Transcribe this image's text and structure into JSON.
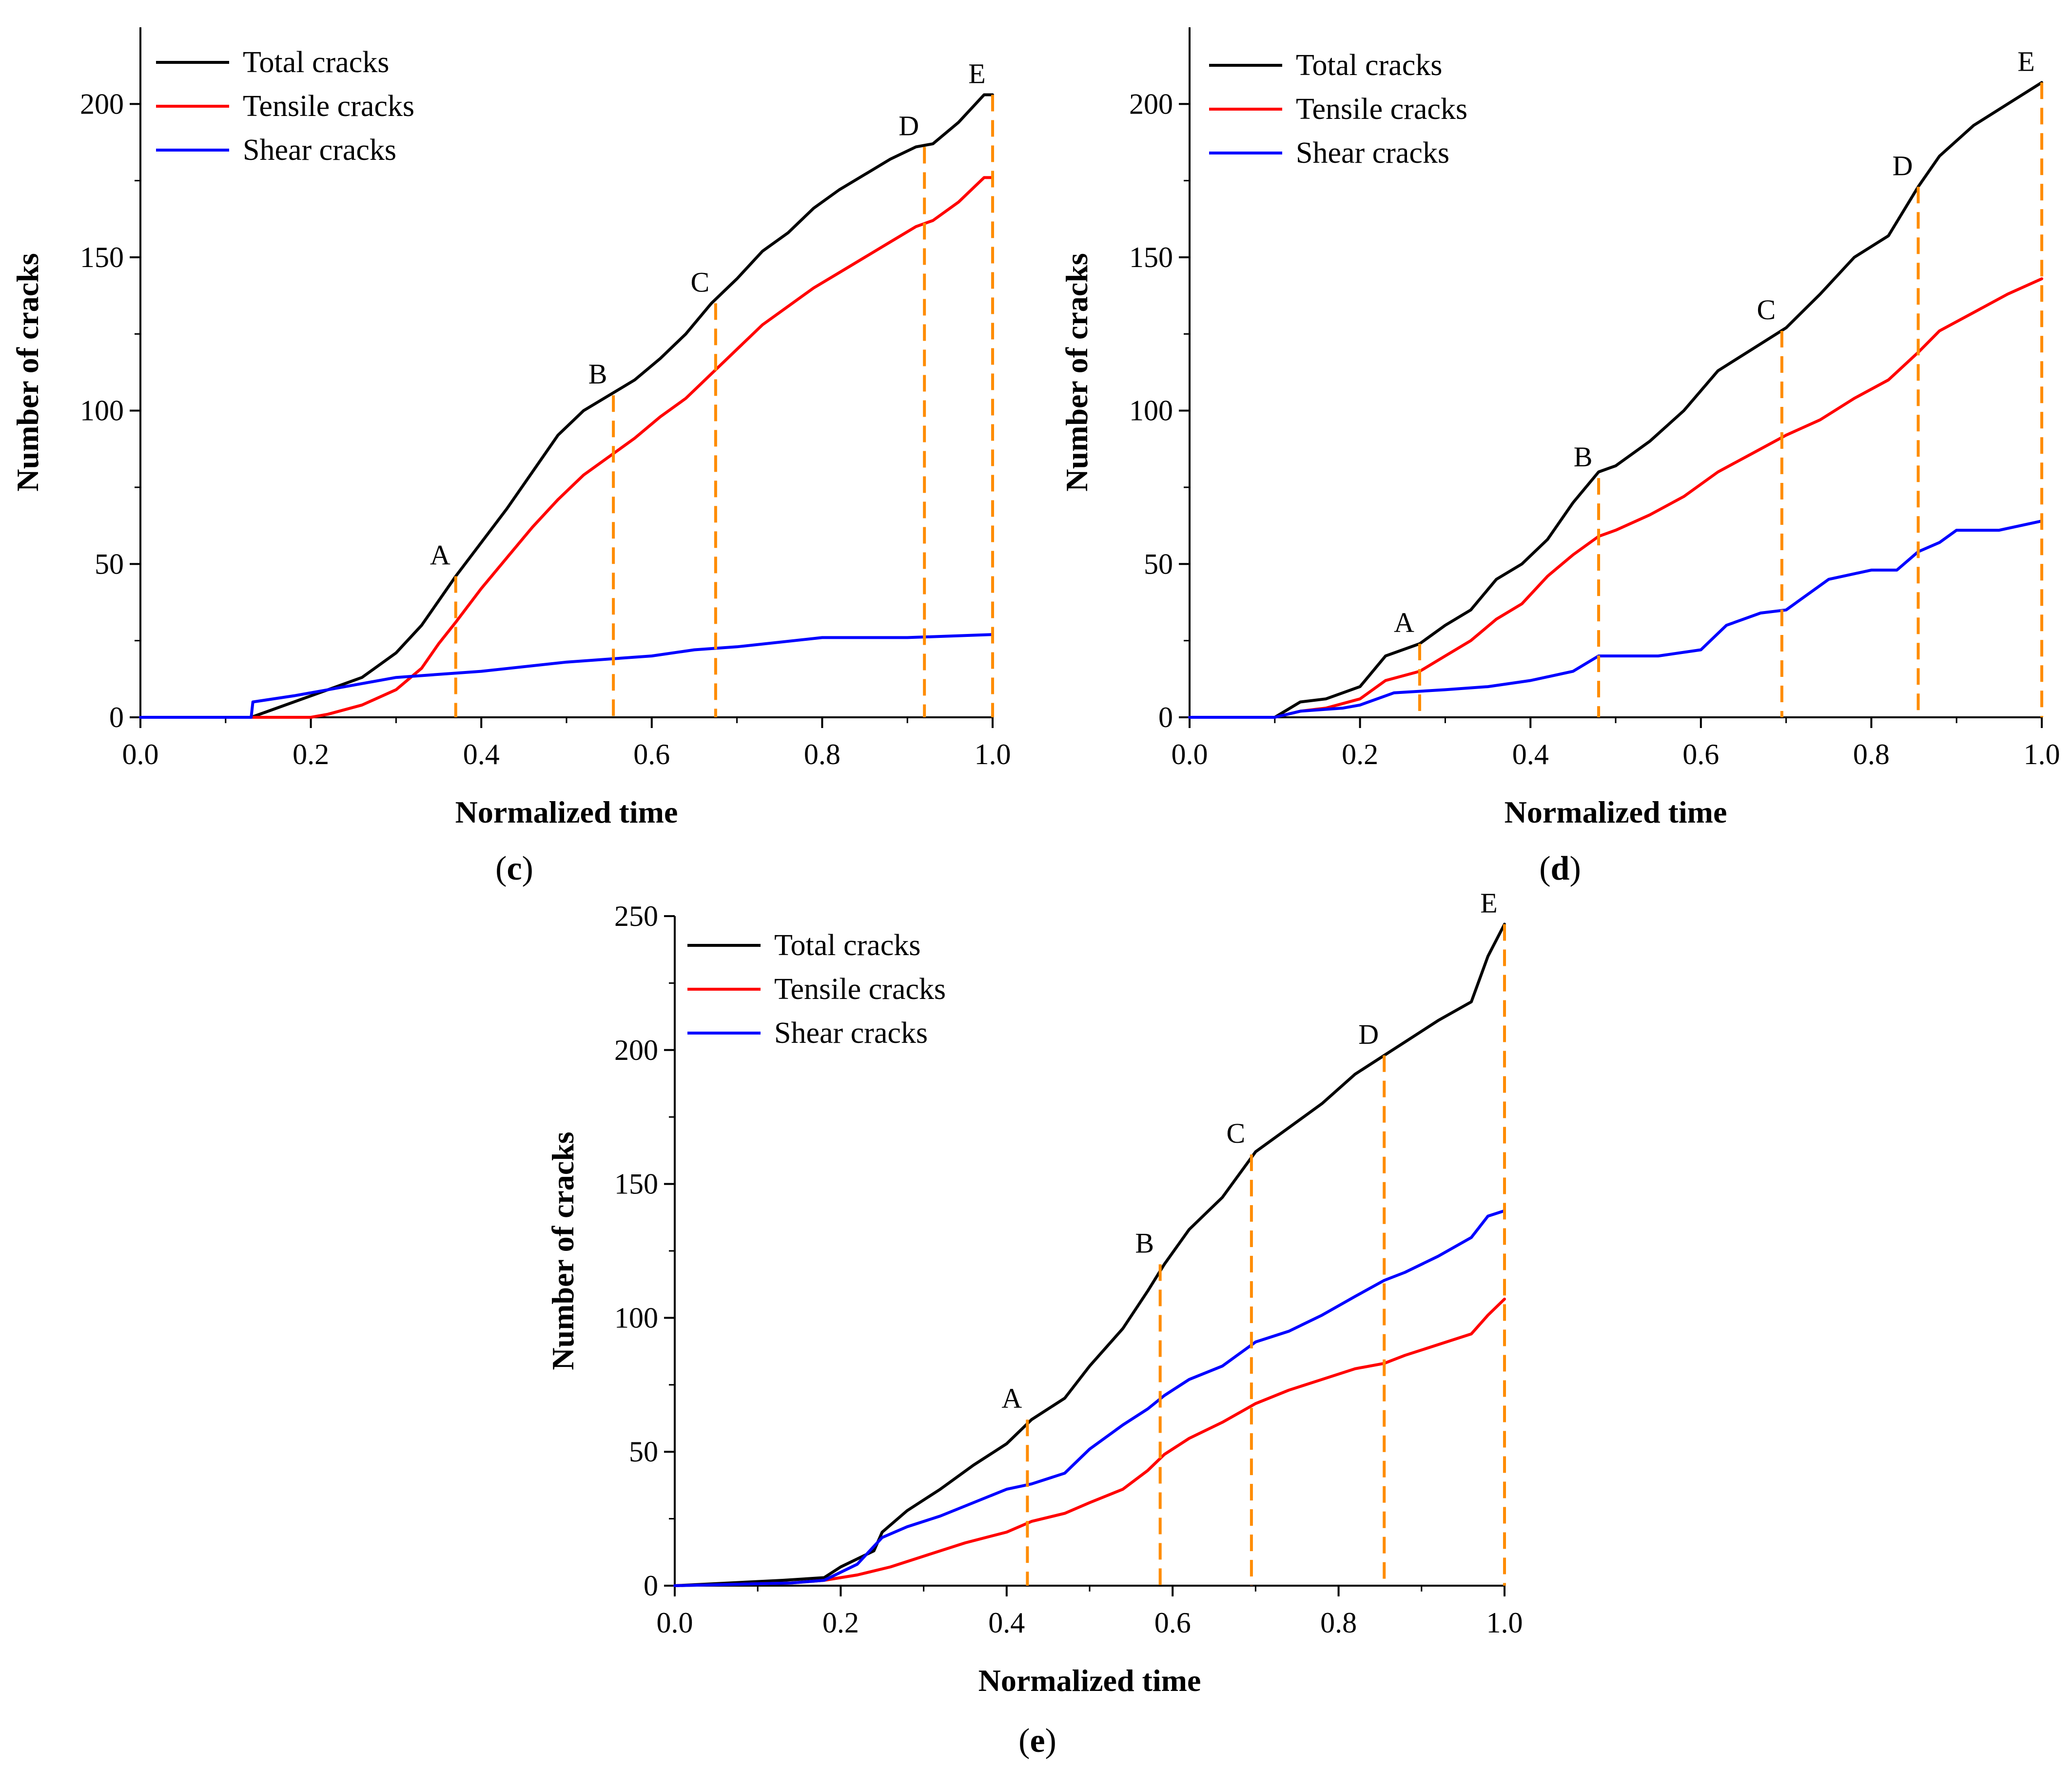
{
  "figure": {
    "colors": {
      "total": "#000000",
      "tensile": "#ff0000",
      "shear": "#0000ff",
      "marker": "#ff8c00",
      "axis": "#000000"
    }
  },
  "chart_data": [
    {
      "id": "c",
      "type": "line",
      "panel_label": "(c)",
      "panel_letter": "c",
      "xlabel": "Normalized time",
      "ylabel": "Number of cracks",
      "xlim": [
        0,
        1.0
      ],
      "ylim": [
        0,
        225
      ],
      "xticks": [
        0.0,
        0.2,
        0.4,
        0.6,
        0.8,
        1.0
      ],
      "xtick_labels": [
        "0.0",
        "0.2",
        "0.4",
        "0.6",
        "0.8",
        "1.0"
      ],
      "yticks": [
        0,
        50,
        100,
        150,
        200
      ],
      "ytick_labels": [
        "0",
        "50",
        "100",
        "150",
        "200"
      ],
      "legend": [
        "Total cracks",
        "Tensile cracks",
        "Shear cracks"
      ],
      "series": [
        {
          "name": "Total cracks",
          "color": "#000000",
          "x": [
            0,
            0.13,
            0.22,
            0.26,
            0.3,
            0.33,
            0.35,
            0.37,
            0.4,
            0.43,
            0.46,
            0.49,
            0.52,
            0.55,
            0.58,
            0.61,
            0.64,
            0.67,
            0.7,
            0.73,
            0.76,
            0.79,
            0.82,
            0.85,
            0.88,
            0.91,
            0.93,
            0.96,
            0.99,
            1.0
          ],
          "y": [
            0,
            0,
            9,
            13,
            21,
            30,
            38,
            46,
            57,
            68,
            80,
            92,
            100,
            105,
            110,
            117,
            125,
            135,
            143,
            152,
            158,
            166,
            172,
            177,
            182,
            186,
            187,
            194,
            203,
            203
          ]
        },
        {
          "name": "Tensile cracks",
          "color": "#ff0000",
          "x": [
            0,
            0.2,
            0.22,
            0.26,
            0.3,
            0.33,
            0.35,
            0.37,
            0.4,
            0.43,
            0.46,
            0.49,
            0.52,
            0.55,
            0.58,
            0.61,
            0.64,
            0.67,
            0.7,
            0.73,
            0.76,
            0.79,
            0.82,
            0.85,
            0.88,
            0.91,
            0.93,
            0.96,
            0.99,
            1.0
          ],
          "y": [
            0,
            0,
            1,
            4,
            9,
            16,
            24,
            31,
            42,
            52,
            62,
            71,
            79,
            85,
            91,
            98,
            104,
            112,
            120,
            128,
            134,
            140,
            145,
            150,
            155,
            160,
            162,
            168,
            176,
            176
          ]
        },
        {
          "name": "Shear cracks",
          "color": "#0000ff",
          "x": [
            0,
            0.13,
            0.132,
            0.18,
            0.22,
            0.3,
            0.4,
            0.5,
            0.6,
            0.65,
            0.7,
            0.8,
            0.9,
            1.0
          ],
          "y": [
            0,
            0,
            5,
            7,
            9,
            13,
            15,
            18,
            20,
            22,
            23,
            26,
            26,
            27
          ]
        }
      ],
      "markers": [
        {
          "label": "A",
          "x": 0.37,
          "y": 46
        },
        {
          "label": "B",
          "x": 0.555,
          "y": 105
        },
        {
          "label": "C",
          "x": 0.675,
          "y": 135
        },
        {
          "label": "D",
          "x": 0.92,
          "y": 186
        },
        {
          "label": "E",
          "x": 1.0,
          "y": 203
        }
      ]
    },
    {
      "id": "d",
      "type": "line",
      "panel_label": "(d)",
      "panel_letter": "d",
      "xlabel": "Normalized time",
      "ylabel": "Number of cracks",
      "xlim": [
        0,
        1.0
      ],
      "ylim": [
        0,
        225
      ],
      "xticks": [
        0.0,
        0.2,
        0.4,
        0.6,
        0.8,
        1.0
      ],
      "xtick_labels": [
        "0.0",
        "0.2",
        "0.4",
        "0.6",
        "0.8",
        "1.0"
      ],
      "yticks": [
        0,
        50,
        100,
        150,
        200
      ],
      "ytick_labels": [
        "0",
        "50",
        "100",
        "150",
        "200"
      ],
      "legend": [
        "Total cracks",
        "Tensile cracks",
        "Shear cracks"
      ],
      "series": [
        {
          "name": "Total cracks",
          "color": "#000000",
          "x": [
            0,
            0.1,
            0.13,
            0.16,
            0.2,
            0.23,
            0.27,
            0.3,
            0.33,
            0.36,
            0.39,
            0.42,
            0.45,
            0.48,
            0.5,
            0.54,
            0.58,
            0.62,
            0.66,
            0.7,
            0.74,
            0.78,
            0.82,
            0.855,
            0.88,
            0.92,
            0.96,
            1.0
          ],
          "y": [
            0,
            0,
            5,
            6,
            10,
            20,
            24,
            30,
            35,
            45,
            50,
            58,
            70,
            80,
            82,
            90,
            100,
            113,
            120,
            127,
            138,
            150,
            157,
            173,
            183,
            193,
            200,
            207
          ]
        },
        {
          "name": "Tensile cracks",
          "color": "#ff0000",
          "x": [
            0,
            0.1,
            0.13,
            0.16,
            0.2,
            0.23,
            0.27,
            0.3,
            0.33,
            0.36,
            0.39,
            0.42,
            0.45,
            0.48,
            0.5,
            0.54,
            0.58,
            0.62,
            0.66,
            0.7,
            0.74,
            0.78,
            0.82,
            0.855,
            0.88,
            0.92,
            0.96,
            1.0
          ],
          "y": [
            0,
            0,
            2,
            3,
            6,
            12,
            15,
            20,
            25,
            32,
            37,
            46,
            53,
            59,
            61,
            66,
            72,
            80,
            86,
            92,
            97,
            104,
            110,
            119,
            126,
            132,
            138,
            143
          ]
        },
        {
          "name": "Shear cracks",
          "color": "#0000ff",
          "x": [
            0,
            0.1,
            0.13,
            0.18,
            0.2,
            0.24,
            0.3,
            0.35,
            0.4,
            0.45,
            0.48,
            0.55,
            0.6,
            0.63,
            0.67,
            0.7,
            0.75,
            0.8,
            0.83,
            0.855,
            0.88,
            0.9,
            0.95,
            1.0
          ],
          "y": [
            0,
            0,
            2,
            3,
            4,
            8,
            9,
            10,
            12,
            15,
            20,
            20,
            22,
            30,
            34,
            35,
            45,
            48,
            48,
            54,
            57,
            61,
            61,
            64
          ]
        }
      ],
      "markers": [
        {
          "label": "A",
          "x": 0.27,
          "y": 24
        },
        {
          "label": "B",
          "x": 0.48,
          "y": 78
        },
        {
          "label": "C",
          "x": 0.695,
          "y": 126
        },
        {
          "label": "D",
          "x": 0.855,
          "y": 173
        },
        {
          "label": "E",
          "x": 1.0,
          "y": 207
        }
      ]
    },
    {
      "id": "e",
      "type": "line",
      "panel_label": "(e)",
      "panel_letter": "e",
      "xlabel": "Normalized time",
      "ylabel": "Number of cracks",
      "xlim": [
        0,
        1.0
      ],
      "ylim": [
        0,
        250
      ],
      "xticks": [
        0.0,
        0.2,
        0.4,
        0.6,
        0.8,
        1.0
      ],
      "xtick_labels": [
        "0.0",
        "0.2",
        "0.4",
        "0.6",
        "0.8",
        "1.0"
      ],
      "yticks": [
        0,
        50,
        100,
        150,
        200,
        250
      ],
      "ytick_labels": [
        "0",
        "50",
        "100",
        "150",
        "200",
        "250"
      ],
      "legend": [
        "Total cracks",
        "Tensile cracks",
        "Shear cracks"
      ],
      "series": [
        {
          "name": "Total cracks",
          "color": "#000000",
          "x": [
            0,
            0.13,
            0.18,
            0.2,
            0.24,
            0.25,
            0.28,
            0.32,
            0.36,
            0.4,
            0.43,
            0.47,
            0.5,
            0.54,
            0.57,
            0.59,
            0.62,
            0.66,
            0.7,
            0.74,
            0.78,
            0.82,
            0.855,
            0.88,
            0.92,
            0.96,
            0.98,
            1.0
          ],
          "y": [
            0,
            2,
            3,
            7,
            13,
            20,
            28,
            36,
            45,
            53,
            62,
            70,
            82,
            96,
            110,
            120,
            133,
            145,
            162,
            171,
            180,
            191,
            198,
            203,
            211,
            218,
            235,
            247
          ]
        },
        {
          "name": "Tensile cracks",
          "color": "#ff0000",
          "x": [
            0,
            0.14,
            0.18,
            0.22,
            0.26,
            0.3,
            0.35,
            0.4,
            0.43,
            0.47,
            0.5,
            0.54,
            0.57,
            0.59,
            0.62,
            0.66,
            0.7,
            0.74,
            0.78,
            0.82,
            0.855,
            0.88,
            0.92,
            0.96,
            0.98,
            1.0
          ],
          "y": [
            0,
            1,
            2,
            4,
            7,
            11,
            16,
            20,
            24,
            27,
            31,
            36,
            43,
            49,
            55,
            61,
            68,
            73,
            77,
            81,
            83,
            86,
            90,
            94,
            101,
            107
          ]
        },
        {
          "name": "Shear cracks",
          "color": "#0000ff",
          "x": [
            0,
            0.14,
            0.18,
            0.22,
            0.25,
            0.28,
            0.32,
            0.36,
            0.4,
            0.43,
            0.47,
            0.5,
            0.54,
            0.57,
            0.59,
            0.62,
            0.66,
            0.7,
            0.74,
            0.78,
            0.82,
            0.855,
            0.88,
            0.92,
            0.96,
            0.98,
            1.0
          ],
          "y": [
            0,
            1,
            2,
            8,
            18,
            22,
            26,
            31,
            36,
            38,
            42,
            51,
            60,
            66,
            71,
            77,
            82,
            91,
            95,
            101,
            108,
            114,
            117,
            123,
            130,
            138,
            140
          ]
        }
      ],
      "markers": [
        {
          "label": "A",
          "x": 0.425,
          "y": 62
        },
        {
          "label": "B",
          "x": 0.585,
          "y": 120
        },
        {
          "label": "C",
          "x": 0.695,
          "y": 161
        },
        {
          "label": "D",
          "x": 0.855,
          "y": 198
        },
        {
          "label": "E",
          "x": 1.0,
          "y": 247
        }
      ]
    }
  ]
}
